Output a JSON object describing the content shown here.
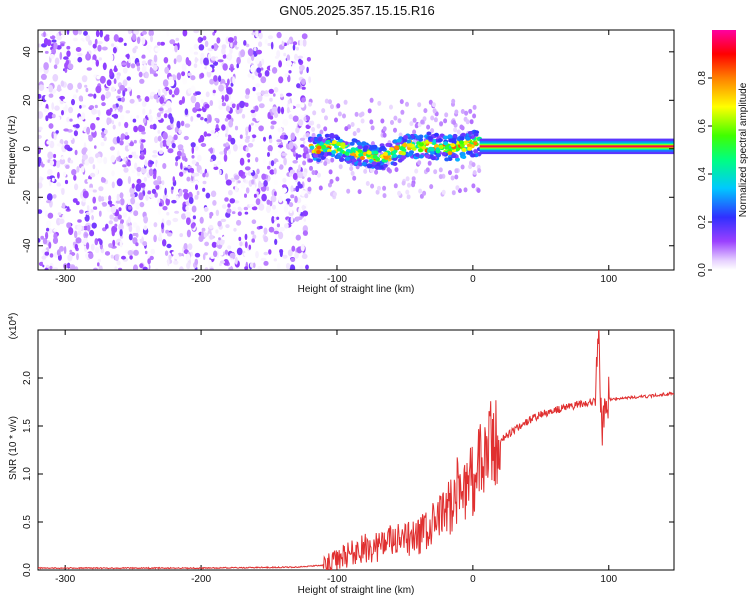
{
  "title": "GN05.2025.357.15.15.R16",
  "chart_data": [
    {
      "type": "heatmap",
      "xlabel": "Height of straight line (km)",
      "ylabel": "Frequency (Hz)",
      "xlim": [
        -320,
        148
      ],
      "ylim": [
        -50,
        49
      ],
      "xticks": [
        -300,
        -200,
        -100,
        0,
        100
      ],
      "yticks": [
        -40,
        -20,
        0,
        20,
        40
      ],
      "colorbar": {
        "label": "Normalized spectral amplitude",
        "range": [
          0,
          1
        ],
        "ticks": [
          0.0,
          0.2,
          0.4,
          0.6,
          0.8
        ],
        "colormap": "rainbow (white-violet-blue-cyan-green-yellow-red-magenta)"
      },
      "regions": [
        {
          "x_range": [
            -320,
            -120
          ],
          "description": "broadband noise, amplitude ~0.0-0.15"
        },
        {
          "x_range": [
            -120,
            5
          ],
          "description": "wavering signal near 0 Hz, amplitude ~0.3-0.8"
        },
        {
          "x_range": [
            5,
            148
          ],
          "description": "steady narrow line at ~1 Hz, amplitude ~0.9"
        }
      ]
    },
    {
      "type": "line",
      "xlabel": "Height of straight line (km)",
      "ylabel": "SNR (10 * v/v)",
      "yscale_label": "(x10",
      "yscale_exp": "4",
      "yscale_close": ")",
      "xlim": [
        -320,
        148
      ],
      "ylim": [
        0,
        2.5
      ],
      "xticks": [
        -300,
        -200,
        -100,
        0,
        100
      ],
      "yticks": [
        0.0,
        0.5,
        1.0,
        1.5,
        2.0
      ],
      "color": "#e03030",
      "series": [
        {
          "x": [
            -320,
            -200,
            -130,
            -110,
            -100,
            -90,
            -80,
            -70,
            -60,
            -50,
            -40,
            -30,
            -20,
            -10,
            0,
            10,
            20,
            30,
            40,
            50,
            60,
            70,
            80,
            90,
            93,
            95,
            97,
            100,
            110,
            120,
            130,
            140,
            148
          ],
          "values": [
            0.02,
            0.02,
            0.03,
            0.05,
            0.1,
            0.18,
            0.22,
            0.25,
            0.3,
            0.3,
            0.35,
            0.45,
            0.6,
            0.85,
            0.95,
            1.2,
            1.35,
            1.45,
            1.55,
            1.62,
            1.66,
            1.7,
            1.73,
            1.76,
            2.45,
            1.2,
            1.8,
            1.78,
            1.79,
            1.8,
            1.81,
            1.83,
            1.84
          ]
        }
      ]
    }
  ]
}
